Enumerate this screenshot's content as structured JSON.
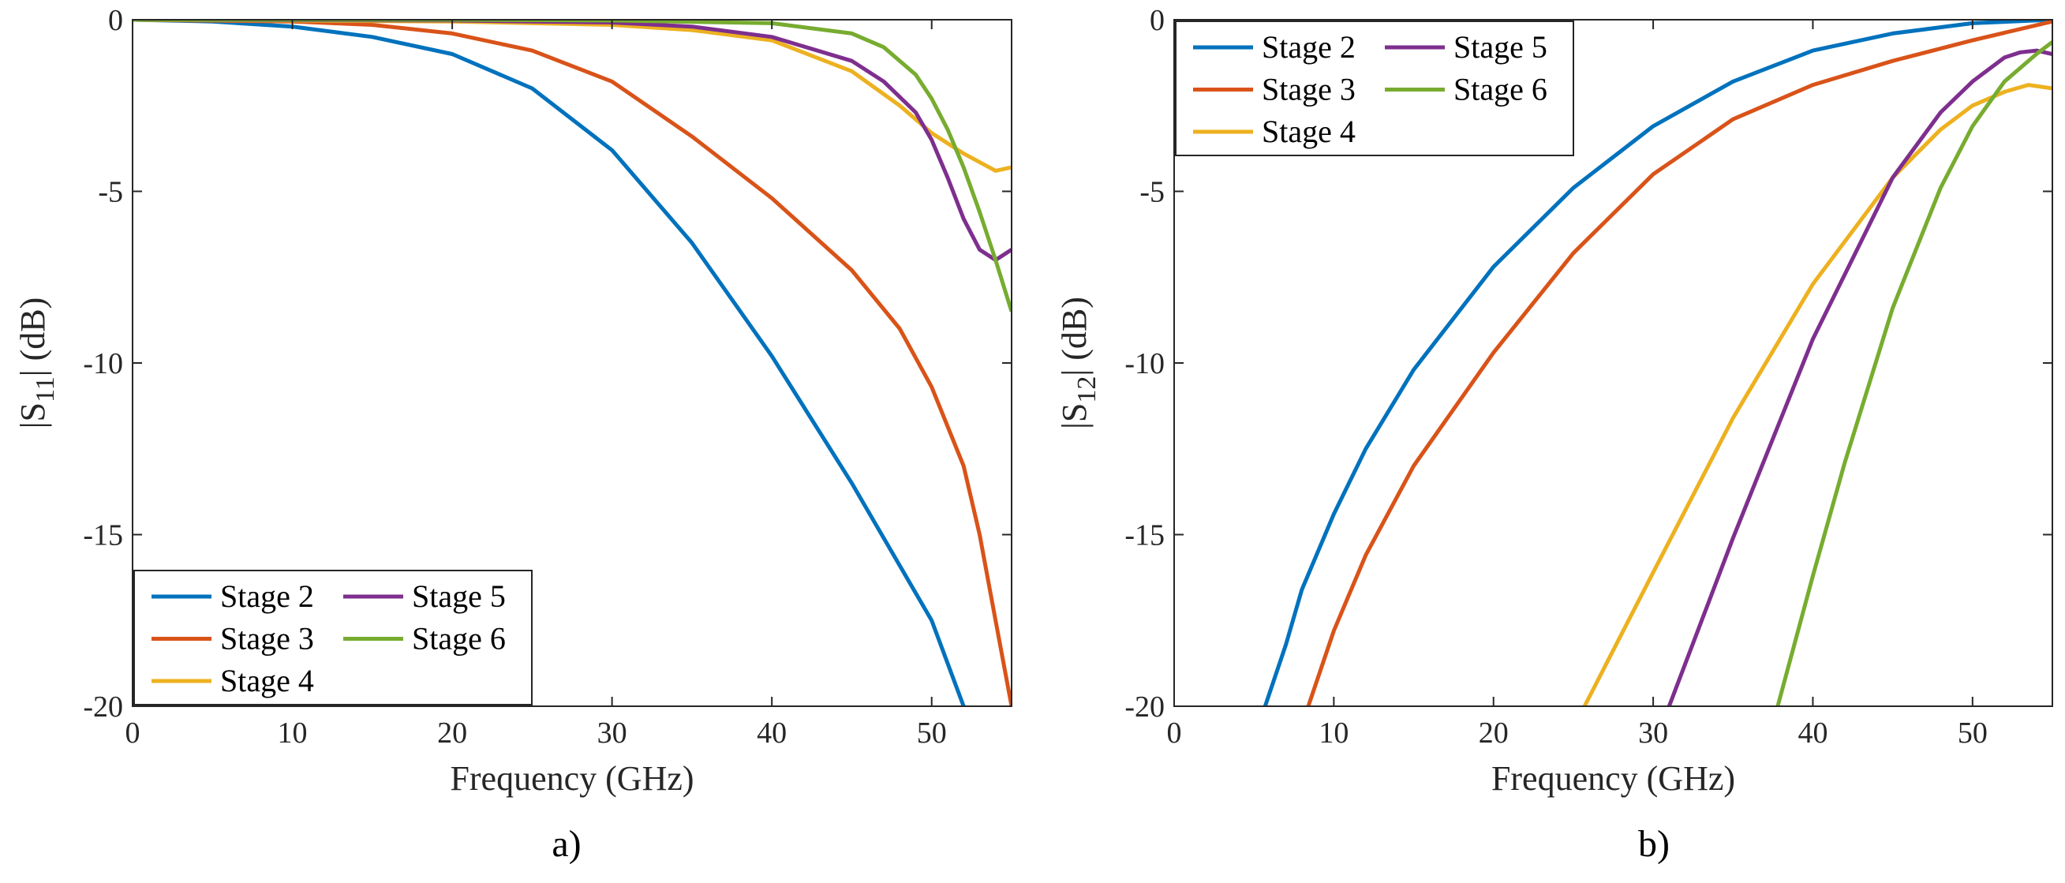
{
  "chart_data": [
    {
      "id": "s11",
      "type": "line",
      "title": "",
      "panel_label": "a)",
      "xlabel": "Frequency (GHz)",
      "ylabel": {
        "prefix": "|S",
        "sub": "11",
        "suffix": "| (dB)"
      },
      "xlim": [
        0,
        55
      ],
      "ylim": [
        -20,
        0
      ],
      "xticks": [
        0,
        10,
        20,
        30,
        40,
        50
      ],
      "yticks": [
        0,
        -5,
        -10,
        -15,
        -20
      ],
      "xtick_labels": [
        "0",
        "10",
        "20",
        "30",
        "40",
        "50"
      ],
      "ytick_labels": [
        "0",
        "-5",
        "-10",
        "-15",
        "-20"
      ],
      "legend_position": "bottom-left",
      "series": [
        {
          "name": "Stage 2",
          "color": "#0072BD",
          "x": [
            0,
            5,
            10,
            15,
            20,
            25,
            30,
            35,
            40,
            45,
            50,
            52
          ],
          "y": [
            0,
            -0.05,
            -0.2,
            -0.5,
            -1.0,
            -2.0,
            -3.8,
            -6.5,
            -9.8,
            -13.5,
            -17.5,
            -20
          ]
        },
        {
          "name": "Stage 3",
          "color": "#D95319",
          "x": [
            0,
            10,
            15,
            20,
            25,
            30,
            35,
            40,
            45,
            48,
            50,
            52,
            53,
            54,
            55
          ],
          "y": [
            0,
            -0.05,
            -0.15,
            -0.4,
            -0.9,
            -1.8,
            -3.4,
            -5.2,
            -7.3,
            -9.0,
            -10.7,
            -13.0,
            -15.0,
            -17.5,
            -20
          ]
        },
        {
          "name": "Stage 4",
          "color": "#EDB120",
          "x": [
            0,
            20,
            30,
            35,
            40,
            45,
            48,
            50,
            52,
            54,
            55
          ],
          "y": [
            0,
            -0.05,
            -0.15,
            -0.3,
            -0.6,
            -1.5,
            -2.5,
            -3.3,
            -3.9,
            -4.4,
            -4.3
          ]
        },
        {
          "name": "Stage 5",
          "color": "#7E2F8E",
          "x": [
            0,
            20,
            30,
            35,
            40,
            45,
            47,
            49,
            50,
            51,
            52,
            53,
            54,
            55
          ],
          "y": [
            0,
            -0.02,
            -0.08,
            -0.2,
            -0.5,
            -1.2,
            -1.8,
            -2.7,
            -3.5,
            -4.6,
            -5.8,
            -6.7,
            -7.0,
            -6.7
          ]
        },
        {
          "name": "Stage 6",
          "color": "#77AC30",
          "x": [
            0,
            20,
            30,
            40,
            45,
            47,
            49,
            50,
            51,
            52,
            53,
            54,
            55
          ],
          "y": [
            0,
            0,
            -0.02,
            -0.1,
            -0.4,
            -0.8,
            -1.6,
            -2.3,
            -3.2,
            -4.3,
            -5.6,
            -7.0,
            -8.5
          ]
        }
      ]
    },
    {
      "id": "s12",
      "type": "line",
      "title": "",
      "panel_label": "b)",
      "xlabel": "Frequency (GHz)",
      "ylabel": {
        "prefix": "|S",
        "sub": "12",
        "suffix": "| (dB)"
      },
      "xlim": [
        0,
        55
      ],
      "ylim": [
        -20,
        0
      ],
      "xticks": [
        0,
        10,
        20,
        30,
        40,
        50
      ],
      "yticks": [
        0,
        -5,
        -10,
        -15,
        -20
      ],
      "xtick_labels": [
        "0",
        "10",
        "20",
        "30",
        "40",
        "50"
      ],
      "ytick_labels": [
        "0",
        "-5",
        "-10",
        "-15",
        "-20"
      ],
      "legend_position": "top-left",
      "series": [
        {
          "name": "Stage 2",
          "color": "#0072BD",
          "x": [
            5.7,
            7,
            8,
            10,
            12,
            15,
            20,
            25,
            30,
            35,
            40,
            45,
            50,
            55
          ],
          "y": [
            -20,
            -18.2,
            -16.6,
            -14.4,
            -12.5,
            -10.2,
            -7.2,
            -4.9,
            -3.1,
            -1.8,
            -0.9,
            -0.4,
            -0.1,
            0
          ]
        },
        {
          "name": "Stage 3",
          "color": "#D95319",
          "x": [
            8.4,
            10,
            12,
            15,
            20,
            25,
            30,
            35,
            40,
            45,
            50,
            55
          ],
          "y": [
            -20,
            -17.8,
            -15.6,
            -13.0,
            -9.7,
            -6.8,
            -4.5,
            -2.9,
            -1.9,
            -1.2,
            -0.6,
            -0.05
          ]
        },
        {
          "name": "Stage 4",
          "color": "#EDB120",
          "x": [
            25.7,
            30,
            35,
            40,
            45,
            48,
            50,
            52,
            53.5,
            55
          ],
          "y": [
            -20,
            -16.1,
            -11.6,
            -7.7,
            -4.6,
            -3.2,
            -2.5,
            -2.1,
            -1.9,
            -2.0
          ]
        },
        {
          "name": "Stage 5",
          "color": "#7E2F8E",
          "x": [
            31,
            35,
            40,
            45,
            48,
            50,
            52,
            53,
            54,
            55
          ],
          "y": [
            -20,
            -15.1,
            -9.3,
            -4.6,
            -2.7,
            -1.8,
            -1.1,
            -0.95,
            -0.9,
            -1.0
          ]
        },
        {
          "name": "Stage 6",
          "color": "#77AC30",
          "x": [
            37.8,
            40,
            42,
            45,
            48,
            50,
            52,
            54,
            55
          ],
          "y": [
            -20,
            -16.2,
            -12.9,
            -8.4,
            -4.9,
            -3.1,
            -1.8,
            -1.0,
            -0.65
          ]
        }
      ]
    }
  ]
}
